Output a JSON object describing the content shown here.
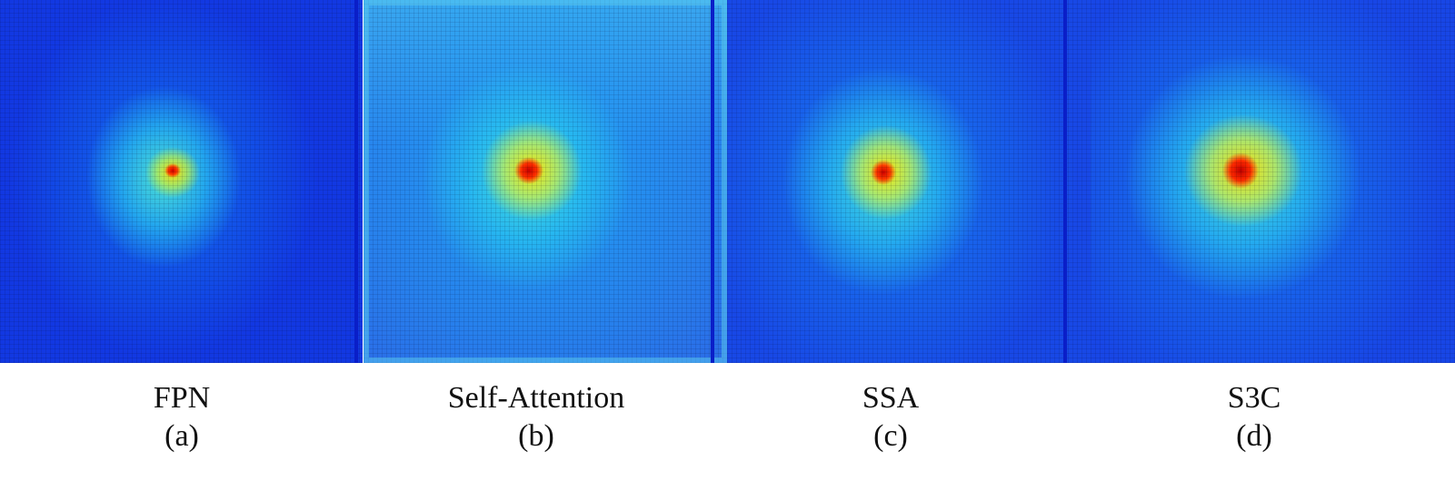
{
  "panels": [
    {
      "method": "FPN",
      "index": "(a)"
    },
    {
      "method": "Self-Attention",
      "index": "(b)"
    },
    {
      "method": "SSA",
      "index": "(c)"
    },
    {
      "method": "S3C",
      "index": "(d)"
    }
  ],
  "colormap": {
    "low": "#1238e2",
    "mid": "#40d8e0",
    "high_mid": "#ffe000",
    "high": "#d00000"
  }
}
